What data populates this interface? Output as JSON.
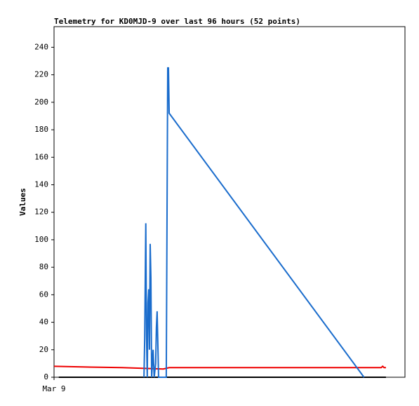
{
  "chart_data": {
    "type": "line",
    "title": "Telemetry for KD0MJD-9 over last 96 hours (52 points)",
    "y_label": "Values",
    "xlim": [
      0,
      96
    ],
    "xticks": [
      {
        "value": 0,
        "label": "Mar 9"
      }
    ],
    "ylim": [
      0,
      255
    ],
    "yticks": [
      0,
      20,
      40,
      60,
      80,
      100,
      120,
      140,
      160,
      180,
      200,
      220,
      240
    ],
    "series": [
      {
        "color": "#000000",
        "x": [
          1.3,
          90.8
        ],
        "values": [
          0,
          0
        ]
      },
      {
        "color": "#ee0000",
        "x": [
          0,
          7.7,
          18.6,
          29.9,
          31.5,
          89.5,
          89.9,
          90.3,
          90.8
        ],
        "values": [
          8,
          7.5,
          7,
          6,
          7,
          7,
          8,
          7,
          7
        ]
      },
      {
        "color": "#1a6ccc",
        "x": [
          24.6,
          24.8,
          25.0,
          25.1,
          25.3,
          25.5,
          25.7,
          25.9,
          26.1,
          26.3,
          26.5,
          26.7,
          27.1,
          27.4,
          27.8,
          28.0,
          28.2,
          28.4,
          28.6,
          30.7,
          30.9,
          31.1,
          31.3,
          31.5,
          84.8
        ],
        "values": [
          0,
          28,
          84,
          112,
          30,
          0,
          54,
          64,
          20,
          97,
          72,
          0,
          20,
          0,
          10,
          36,
          48,
          24,
          0,
          0,
          112,
          225,
          225,
          192,
          0
        ]
      }
    ]
  }
}
